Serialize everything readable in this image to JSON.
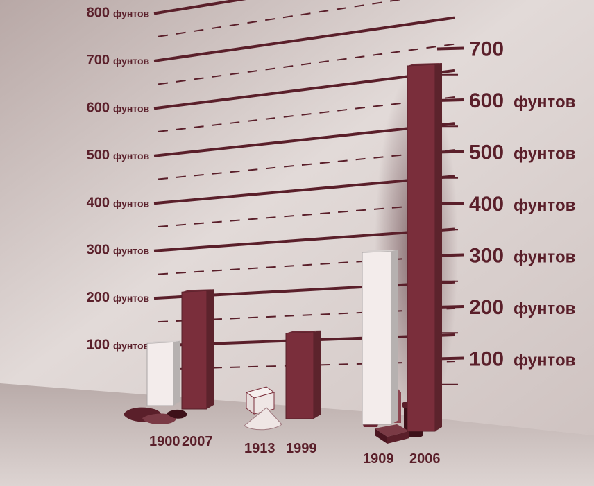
{
  "chart_data": {
    "type": "bar",
    "groups": [
      {
        "name": "left",
        "unit_label": "фунтов",
        "ticks": [
          {
            "value": 100,
            "label": "100",
            "unit": "фунтов"
          },
          {
            "value": 200,
            "label": "200",
            "unit": "фунтов"
          },
          {
            "value": 300,
            "label": "300",
            "unit": "фунтов"
          },
          {
            "value": 400,
            "label": "400",
            "unit": "фунтов"
          },
          {
            "value": 500,
            "label": "500",
            "unit": "фунтов"
          },
          {
            "value": 600,
            "label": "600",
            "unit": "фунтов"
          },
          {
            "value": 700,
            "label": "700",
            "unit": "фунтов"
          },
          {
            "value": 800,
            "label": "800",
            "unit": "фунтов"
          }
        ],
        "bars": [
          {
            "year": "1900",
            "value": 128,
            "color": "#f3eceb"
          },
          {
            "year": "2007",
            "value": 228,
            "color": "#7a2e3b"
          },
          {
            "year": "1913",
            "value": 38,
            "color": "#f3eceb"
          },
          {
            "year": "1999",
            "value": 140,
            "color": "#7a2e3b"
          }
        ]
      },
      {
        "name": "right",
        "ticks": [
          {
            "value": 100,
            "label": "100",
            "unit": "фунтов"
          },
          {
            "value": 200,
            "label": "200",
            "unit": "фунтов"
          },
          {
            "value": 300,
            "label": "300",
            "unit": "фунтов"
          },
          {
            "value": 400,
            "label": "400",
            "unit": "фунтов"
          },
          {
            "value": 500,
            "label": "500",
            "unit": "фунтов"
          },
          {
            "value": 600,
            "label": "600",
            "unit": "фунтов"
          },
          {
            "value": 700,
            "label": "700",
            "unit": ""
          }
        ],
        "bars": [
          {
            "year": "1909",
            "value": 295,
            "color": "#f3eceb"
          },
          {
            "year": "2006",
            "value": 620,
            "color": "#7a2e3b"
          }
        ]
      }
    ],
    "grid": true,
    "colors": {
      "dark_bar": "#7a2e3b",
      "light_bar": "#f3eceb",
      "text": "#5a1f2a",
      "wall": "#d3c6c4",
      "floor": "#c9bebc"
    }
  }
}
